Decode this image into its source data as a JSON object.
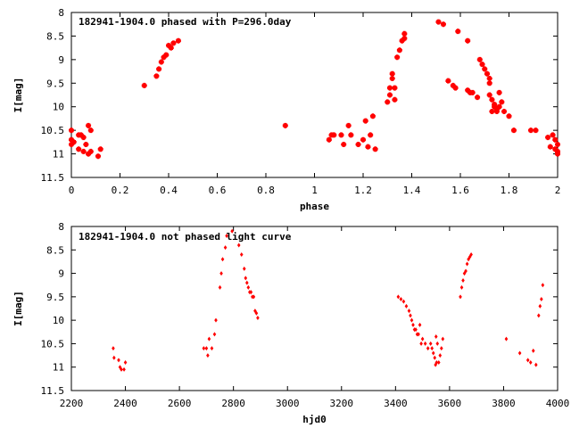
{
  "chart_data": [
    {
      "type": "scatter",
      "title": "182941-1904.0 phased with P=296.0day",
      "xlabel": "phase",
      "ylabel": "I[mag]",
      "xlim": [
        0,
        2
      ],
      "ylim": [
        11.5,
        8
      ],
      "y_inverted": true,
      "xticks": [
        0,
        0.2,
        0.4,
        0.6,
        0.8,
        1,
        1.2,
        1.4,
        1.6,
        1.8,
        2
      ],
      "xtick_labels": [
        "0",
        "0.2",
        "0.4",
        "0.6",
        "0.8",
        "1",
        "1.2",
        "1.4",
        "1.6",
        "1.8",
        "2"
      ],
      "yticks": [
        8,
        8.5,
        9,
        9.5,
        10,
        10.5,
        11,
        11.5
      ],
      "ytick_labels": [
        "8",
        "8.5",
        "9",
        "9.5",
        "10",
        "10.5",
        "11",
        "11.5"
      ],
      "grid": false,
      "marker_color": "#ff0000",
      "series": [
        {
          "x": [
            0.0,
            0.0,
            0.0,
            0.01,
            0.03,
            0.03,
            0.04,
            0.05,
            0.05,
            0.06,
            0.07,
            0.07,
            0.08,
            0.08,
            0.11,
            0.12,
            0.3,
            0.35,
            0.36,
            0.37,
            0.38,
            0.39,
            0.4,
            0.41,
            0.42,
            0.44,
            0.88,
            1.06,
            1.07,
            1.08,
            1.11,
            1.12,
            1.14,
            1.15,
            1.18,
            1.2,
            1.21,
            1.22,
            1.23,
            1.24,
            1.25,
            1.3,
            1.31,
            1.31,
            1.32,
            1.32,
            1.33,
            1.33,
            1.34,
            1.35,
            1.36,
            1.37,
            1.37,
            1.51,
            1.53,
            1.55,
            1.57,
            1.58,
            1.59,
            1.63,
            1.63,
            1.64,
            1.65,
            1.67,
            1.68,
            1.69,
            1.7,
            1.71,
            1.72,
            1.72,
            1.72,
            1.73,
            1.73,
            1.74,
            1.74,
            1.75,
            1.75,
            1.76,
            1.76,
            1.77,
            1.78,
            1.8,
            1.82,
            1.89,
            1.91,
            1.96,
            1.97,
            1.98,
            1.99,
            1.99,
            2.0,
            2.0,
            2.0
          ],
          "y": [
            10.5,
            10.7,
            10.8,
            10.75,
            10.6,
            10.9,
            10.6,
            10.65,
            10.95,
            10.8,
            11.0,
            10.4,
            10.95,
            10.5,
            11.05,
            10.9,
            9.55,
            9.35,
            9.2,
            9.05,
            8.95,
            8.9,
            8.7,
            8.75,
            8.65,
            8.6,
            10.4,
            10.7,
            10.6,
            10.6,
            10.6,
            10.8,
            10.4,
            10.6,
            10.8,
            10.7,
            10.3,
            10.85,
            10.6,
            10.2,
            10.9,
            9.9,
            9.6,
            9.75,
            9.4,
            9.3,
            9.6,
            9.85,
            8.95,
            8.8,
            8.6,
            8.45,
            8.55,
            8.2,
            8.25,
            9.45,
            9.55,
            9.6,
            8.4,
            8.6,
            9.65,
            9.7,
            9.7,
            9.8,
            9.0,
            9.1,
            9.2,
            9.3,
            9.5,
            9.4,
            9.75,
            9.85,
            10.1,
            9.95,
            10.0,
            10.1,
            10.05,
            10.0,
            9.7,
            9.9,
            10.1,
            10.2,
            10.5,
            10.5,
            10.5,
            10.65,
            10.85,
            10.6,
            10.7,
            10.9,
            10.95,
            11.0,
            10.8
          ]
        }
      ]
    },
    {
      "type": "scatter",
      "title": "182941-1904.0 not phased light curve",
      "xlabel": "hjd0",
      "ylabel": "I[mag]",
      "xlim": [
        2200,
        4000
      ],
      "ylim": [
        11.5,
        8
      ],
      "y_inverted": true,
      "xticks": [
        2200,
        2400,
        2600,
        2800,
        3000,
        3200,
        3400,
        3600,
        3800,
        4000
      ],
      "xtick_labels": [
        "2200",
        "2400",
        "2600",
        "2800",
        "3000",
        "3200",
        "3400",
        "3600",
        "3800",
        "4000"
      ],
      "yticks": [
        8,
        8.5,
        9,
        9.5,
        10,
        10.5,
        11,
        11.5
      ],
      "ytick_labels": [
        "8",
        "8.5",
        "9",
        "9.5",
        "10",
        "10.5",
        "11",
        "11.5"
      ],
      "grid": false,
      "marker_color": "#ff0000",
      "series": [
        {
          "x": [
            2355,
            2358,
            2375,
            2380,
            2385,
            2395,
            2400,
            2690,
            2700,
            2705,
            2710,
            2720,
            2730,
            2735,
            2750,
            2755,
            2760,
            2770,
            2775,
            2795,
            2820,
            2830,
            2840,
            2845,
            2850,
            2855,
            2860,
            2865,
            2870,
            2875,
            2880,
            2885,
            2890,
            3410,
            3420,
            3430,
            3440,
            3450,
            3455,
            3460,
            3465,
            3470,
            3475,
            3480,
            3485,
            3490,
            3495,
            3500,
            3510,
            3520,
            3530,
            3535,
            3540,
            3545,
            3548,
            3550,
            3552,
            3555,
            3560,
            3565,
            3570,
            3575,
            3640,
            3645,
            3650,
            3655,
            3660,
            3665,
            3670,
            3675,
            3680,
            3810,
            3860,
            3890,
            3900,
            3910,
            3920,
            3930,
            3935,
            3940,
            3945
          ],
          "y": [
            10.6,
            10.8,
            10.85,
            11.0,
            11.05,
            11.05,
            10.9,
            10.6,
            10.6,
            10.75,
            10.4,
            10.6,
            10.3,
            10.0,
            9.3,
            9.0,
            8.7,
            8.45,
            8.2,
            8.1,
            8.4,
            8.6,
            8.9,
            9.1,
            9.2,
            9.3,
            9.4,
            9.4,
            9.5,
            9.5,
            9.8,
            9.85,
            9.95,
            9.5,
            9.55,
            9.6,
            9.7,
            9.8,
            9.9,
            10.0,
            10.1,
            10.2,
            10.2,
            10.3,
            10.3,
            10.1,
            10.5,
            10.4,
            10.5,
            10.6,
            10.5,
            10.6,
            10.7,
            10.8,
            10.95,
            10.35,
            10.9,
            10.5,
            10.9,
            10.75,
            10.6,
            10.4,
            9.5,
            9.3,
            9.15,
            9.0,
            8.95,
            8.8,
            8.7,
            8.65,
            8.6,
            10.4,
            10.7,
            10.85,
            10.9,
            10.65,
            10.95,
            9.9,
            9.7,
            9.55,
            9.25
          ]
        }
      ]
    }
  ]
}
